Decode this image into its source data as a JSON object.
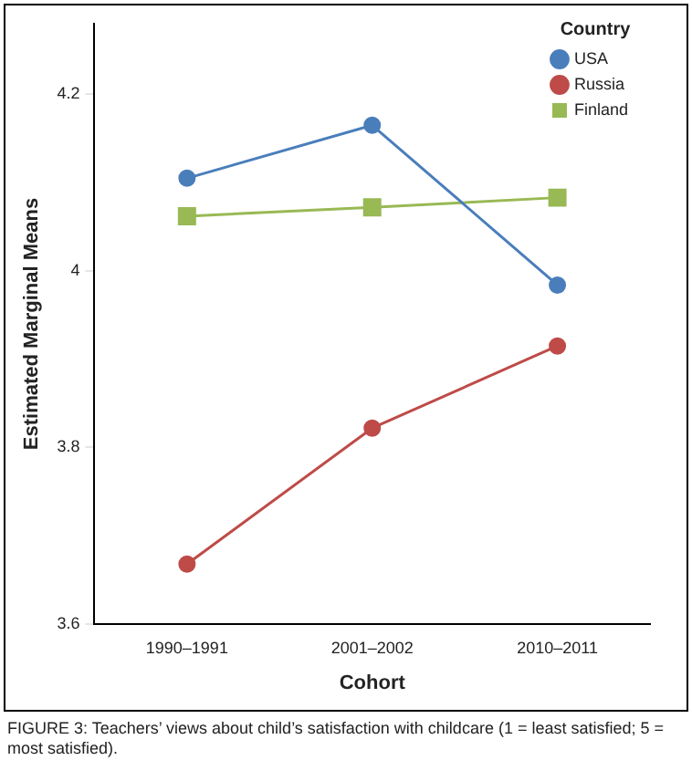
{
  "chart_data": {
    "type": "line",
    "xlabel": "Cohort",
    "ylabel": "Estimated Marginal Means",
    "legend_title": "Country",
    "categories": [
      "1990–1991",
      "2001–2002",
      "2010–2011"
    ],
    "series": [
      {
        "name": "USA",
        "color": "#4a7ebb",
        "marker": "circle",
        "values": [
          4.105,
          4.165,
          3.984
        ]
      },
      {
        "name": "Russia",
        "color": "#be4b48",
        "marker": "circle",
        "values": [
          3.668,
          3.822,
          3.915
        ]
      },
      {
        "name": "Finland",
        "color": "#98b954",
        "marker": "square",
        "values": [
          4.062,
          4.072,
          4.083
        ]
      }
    ],
    "ylim": [
      3.6,
      4.28
    ],
    "yticks": [
      {
        "value": 3.6,
        "label": "3.6"
      },
      {
        "value": 3.8,
        "label": "3.8"
      },
      {
        "value": 4,
        "label": "4"
      },
      {
        "value": 4.2,
        "label": "4.2"
      }
    ],
    "grid": false,
    "legend": "top right",
    "annotations": [
      "FIGURE 3: Teachers’ views about child’s satisfaction with childcare (1 = least satisfied; 5 = most satisfied)."
    ]
  }
}
